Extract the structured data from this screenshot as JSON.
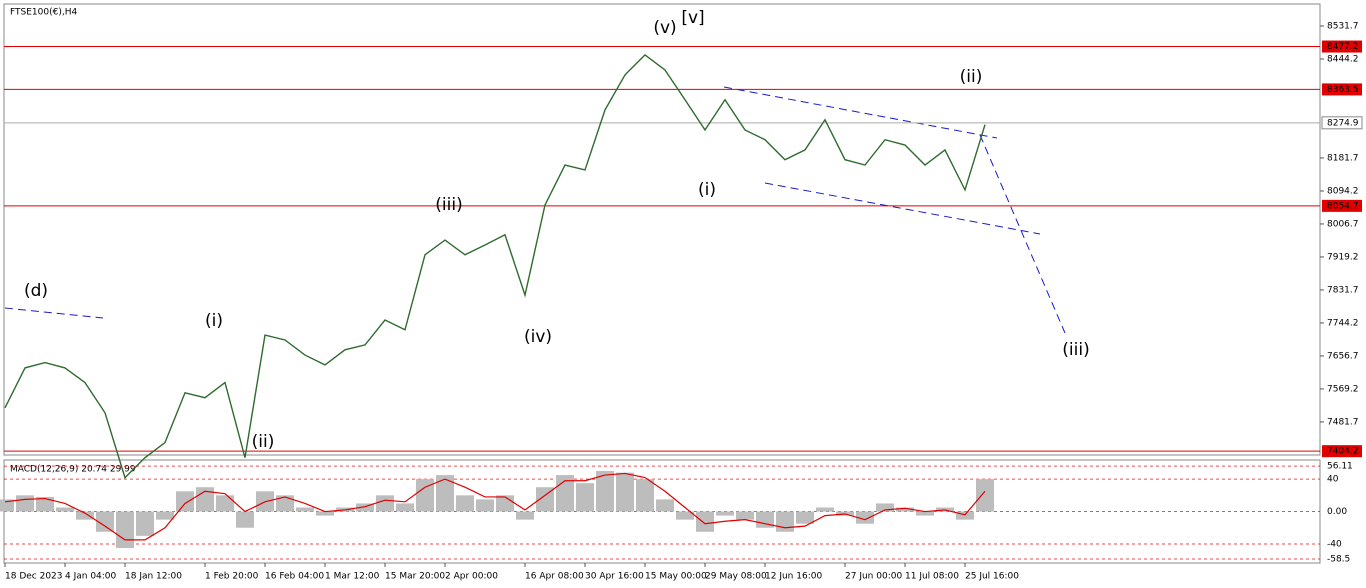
{
  "chart_data": [
    {
      "type": "line",
      "title": "FTSE100(€),H4",
      "color": "#2f6b2f",
      "categories": [
        "18 Dec 2023",
        null,
        null,
        "4 Jan 04:00",
        null,
        null,
        "18 Jan 12:00",
        null,
        null,
        null,
        "1 Feb 20:00",
        null,
        null,
        "16 Feb 04:00",
        null,
        null,
        "1 Mar 12:00",
        null,
        null,
        "15 Mar 20:00",
        null,
        null,
        "2 Apr 00:00",
        null,
        null,
        null,
        "16 Apr 08:00",
        null,
        null,
        "30 Apr 16:00",
        null,
        null,
        "15 May 00:00",
        null,
        null,
        "29 May 08:00",
        null,
        null,
        "12 Jun 16:00",
        null,
        null,
        null,
        "27 Jun 00:00",
        null,
        null,
        "11 Jul 08:00",
        null,
        null,
        "25 Jul 16:00",
        null
      ],
      "values": [
        7519,
        7625,
        7639,
        7625,
        7586,
        7506,
        7334,
        7387,
        7427,
        7559,
        7546,
        7586,
        7387,
        7712,
        7699,
        7659,
        7633,
        7673,
        7686,
        7752,
        7726,
        7925,
        7964,
        7925,
        7951,
        7978,
        7818,
        8057,
        8163,
        8150,
        8309,
        8402,
        8455,
        8415,
        8336,
        8256,
        8336,
        8256,
        8230,
        8177,
        8203,
        8283,
        8177,
        8163,
        8230,
        8216,
        8163,
        8203,
        8097,
        8270
      ],
      "ylim": [
        7394,
        8590
      ],
      "yticks": [
        8531.7,
        8444.2,
        8181.7,
        8094.2,
        8006.7,
        7919.2,
        7831.7,
        7744.2,
        7656.7,
        7569.2,
        7481.7
      ],
      "levels": [
        8477.2,
        8363.5,
        8054.7,
        7404.2
      ],
      "level_color": "#e00000",
      "current": 8274.9,
      "annotations": [
        {
          "text": "[v]",
          "color": "#1a8a1a"
        },
        {
          "text": "(v)",
          "color": "#1a1ad0"
        },
        {
          "text": "(iii)",
          "color": "#1a1ad0"
        },
        {
          "text": "(iv)",
          "color": "#1a1ad0"
        },
        {
          "text": "(i)",
          "color": "#1a1ad0"
        },
        {
          "text": "(ii)",
          "color": "#1a1ad0"
        },
        {
          "text": "(d)",
          "color": "#1a1ad0"
        },
        {
          "text": "(i)",
          "color": "#1a1ad0"
        },
        {
          "text": "(ii)",
          "color": "#1a1ad0"
        },
        {
          "text": "(iii)",
          "color": "#1a1ad0"
        }
      ]
    },
    {
      "type": "bar",
      "title": "MACD(12,26,9) 20.74 29.99",
      "series": [
        {
          "name": "MACD",
          "color": "#bdbdbd",
          "values": [
            15,
            20,
            18,
            5,
            -10,
            -25,
            -45,
            -30,
            -10,
            25,
            30,
            20,
            -20,
            25,
            20,
            5,
            -5,
            5,
            10,
            20,
            10,
            40,
            45,
            20,
            15,
            20,
            -10,
            30,
            45,
            35,
            50,
            48,
            40,
            15,
            -10,
            -25,
            -5,
            -10,
            -20,
            -25,
            -15,
            5,
            -5,
            -15,
            10,
            5,
            -5,
            5,
            -10,
            40
          ]
        },
        {
          "name": "Signal",
          "color": "#e00000",
          "values": [
            12,
            15,
            16,
            10,
            -2,
            -18,
            -35,
            -35,
            -20,
            10,
            25,
            22,
            0,
            12,
            18,
            10,
            0,
            2,
            6,
            14,
            12,
            30,
            40,
            30,
            18,
            18,
            2,
            20,
            38,
            38,
            45,
            47,
            42,
            25,
            5,
            -15,
            -12,
            -10,
            -15,
            -20,
            -18,
            -5,
            -3,
            -10,
            2,
            4,
            0,
            2,
            -4,
            25
          ]
        }
      ],
      "ylim": [
        -63.5,
        63.6
      ],
      "yticks": [
        56.11,
        40,
        {
          "value": 0,
          "label": "0.00"
        },
        -40,
        -58.5
      ]
    }
  ]
}
